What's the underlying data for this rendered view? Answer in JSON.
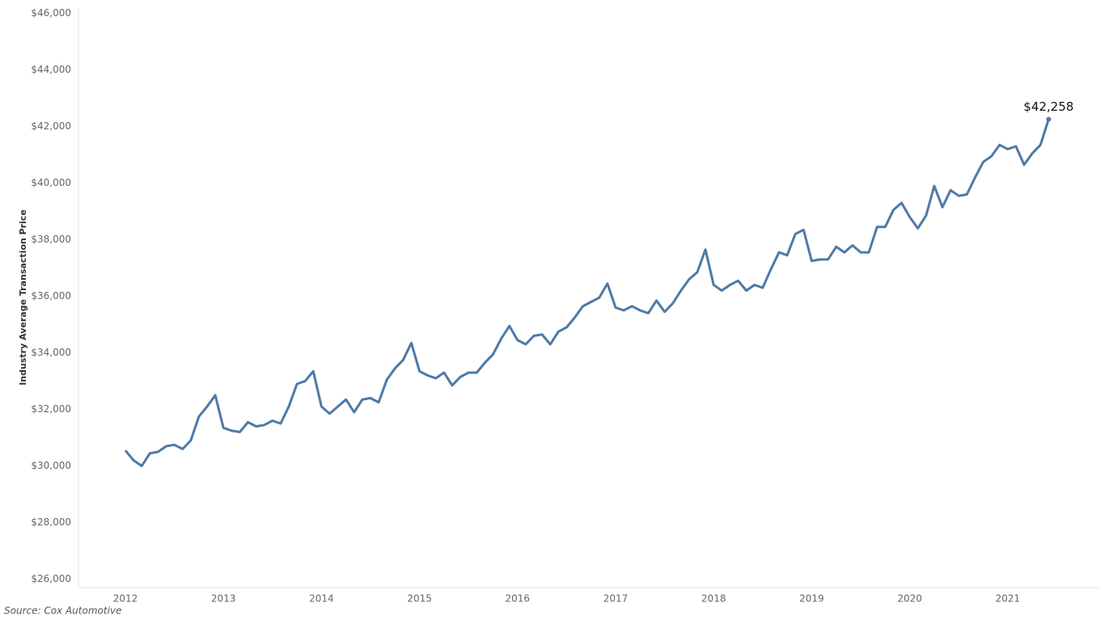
{
  "chart_data": {
    "type": "line",
    "y_label": "Industry Average Transaction Price",
    "source": "Source: Cox Automotive",
    "color": "#4e79a7",
    "categories": [
      "2012",
      null,
      null,
      null,
      null,
      null,
      null,
      null,
      null,
      null,
      null,
      null,
      "2013",
      null,
      null,
      null,
      null,
      null,
      null,
      null,
      null,
      null,
      null,
      null,
      "2014",
      null,
      null,
      null,
      null,
      null,
      null,
      null,
      null,
      null,
      null,
      null,
      "2015",
      null,
      null,
      null,
      null,
      null,
      null,
      null,
      null,
      null,
      null,
      null,
      "2016",
      null,
      null,
      null,
      null,
      null,
      null,
      null,
      null,
      null,
      null,
      null,
      "2017",
      null,
      null,
      null,
      null,
      null,
      null,
      null,
      null,
      null,
      null,
      null,
      "2018",
      null,
      null,
      null,
      null,
      null,
      null,
      null,
      null,
      null,
      null,
      null,
      "2019",
      null,
      null,
      null,
      null,
      null,
      null,
      null,
      null,
      null,
      null,
      null,
      "2020",
      null,
      null,
      null,
      null,
      null,
      null,
      null,
      null,
      null,
      null,
      null,
      "2021",
      null,
      null,
      null,
      null,
      null
    ],
    "values": [
      30550,
      30200,
      30000,
      30450,
      30500,
      30700,
      30750,
      30600,
      30900,
      31750,
      32100,
      32500,
      31350,
      31250,
      31200,
      31550,
      31400,
      31450,
      31600,
      31500,
      32100,
      32900,
      33000,
      33350,
      32100,
      31850,
      32100,
      32350,
      31900,
      32350,
      32400,
      32250,
      33050,
      33450,
      33750,
      34350,
      33350,
      33200,
      33100,
      33300,
      32850,
      33150,
      33300,
      33300,
      33650,
      33950,
      34500,
      34950,
      34450,
      34300,
      34600,
      34650,
      34300,
      34750,
      34900,
      35250,
      35650,
      35800,
      35950,
      36450,
      35600,
      35500,
      35650,
      35500,
      35400,
      35850,
      35450,
      35750,
      36200,
      36600,
      36850,
      37650,
      36400,
      36200,
      36400,
      36550,
      36200,
      36400,
      36300,
      36950,
      37550,
      37450,
      38200,
      38350,
      37250,
      37300,
      37300,
      37750,
      37550,
      37800,
      37550,
      37550,
      38450,
      38450,
      39050,
      39300,
      38800,
      38400,
      38850,
      39900,
      39150,
      39750,
      39550,
      39600,
      40200,
      40750,
      40950,
      41350,
      41200,
      41300,
      40650,
      41050,
      41350,
      42258
    ],
    "value_labels": [
      null,
      null,
      null,
      null,
      null,
      null,
      null,
      null,
      null,
      null,
      null,
      null,
      null,
      null,
      null,
      null,
      null,
      null,
      null,
      null,
      null,
      null,
      null,
      null,
      null,
      null,
      null,
      null,
      null,
      null,
      null,
      null,
      null,
      null,
      null,
      null,
      null,
      null,
      null,
      null,
      null,
      null,
      null,
      null,
      null,
      null,
      null,
      null,
      null,
      null,
      null,
      null,
      null,
      null,
      null,
      null,
      null,
      null,
      null,
      null,
      null,
      null,
      null,
      null,
      null,
      null,
      null,
      null,
      null,
      null,
      null,
      null,
      null,
      null,
      null,
      null,
      null,
      null,
      null,
      null,
      null,
      null,
      null,
      null,
      null,
      null,
      null,
      null,
      null,
      null,
      null,
      null,
      null,
      null,
      null,
      null,
      null,
      null,
      null,
      null,
      null,
      null,
      null,
      null,
      null,
      null,
      null,
      null,
      null,
      null,
      null,
      null,
      null,
      "$42,258"
    ],
    "ylim": [
      25700,
      46100
    ],
    "yticks": [
      {
        "value": 26000,
        "label": "$26,000"
      },
      {
        "value": 28000,
        "label": "$28,000"
      },
      {
        "value": 30000,
        "label": "$30,000"
      },
      {
        "value": 32000,
        "label": "$32,000"
      },
      {
        "value": 34000,
        "label": "$34,000"
      },
      {
        "value": 36000,
        "label": "$36,000"
      },
      {
        "value": 38000,
        "label": "$38,000"
      },
      {
        "value": 40000,
        "label": "$40,000"
      },
      {
        "value": 42000,
        "label": "$42,000"
      },
      {
        "value": 44000,
        "label": "$44,000"
      },
      {
        "value": 46000,
        "label": "$46,000"
      }
    ],
    "grid": false
  }
}
